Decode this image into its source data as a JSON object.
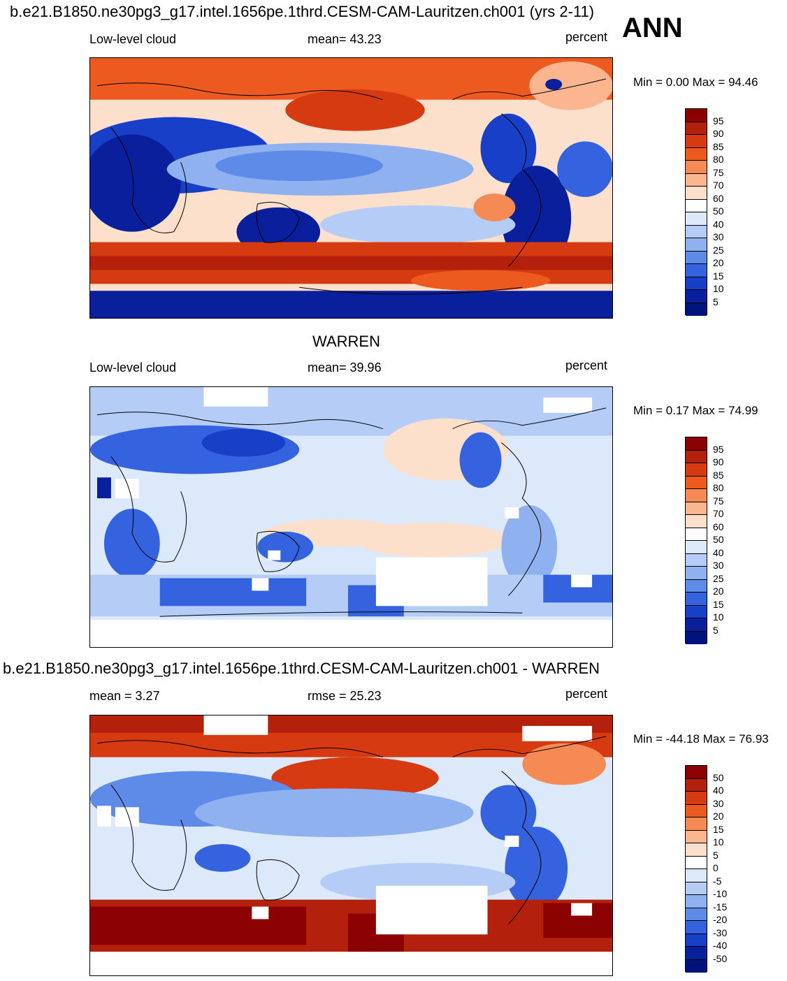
{
  "header": {
    "case_title": "b.e21.B1850.ne30pg3_g17.intel.1656pe.1thrd.CESM-CAM-Lauritzen.ch001 (yrs 2-11)",
    "season": "ANN"
  },
  "panels": [
    {
      "id": "model",
      "heading": "",
      "left_label": "Low-level cloud",
      "center_label": "mean=  43.23",
      "right_label": "percent",
      "minmax": "Min =   0.00 Max =  94.46",
      "colorbar_levels": [
        "95",
        "90",
        "85",
        "80",
        "75",
        "70",
        "60",
        "50",
        "40",
        "30",
        "25",
        "20",
        "15",
        "10",
        "5"
      ],
      "colors": [
        "#8b0000",
        "#b3200c",
        "#d63a10",
        "#ec5a20",
        "#f68a55",
        "#fbb690",
        "#fde0cc",
        "#ffffff",
        "#dce9fb",
        "#b5cdf6",
        "#8fb1ef",
        "#5f8be8",
        "#3563df",
        "#173fc8",
        "#0a1f9b",
        "#00137a"
      ]
    },
    {
      "id": "obs",
      "heading": "WARREN",
      "left_label": "Low-level cloud",
      "center_label": "mean=  39.96",
      "right_label": "percent",
      "minmax": "Min =   0.17 Max =  74.99",
      "colorbar_levels": [
        "95",
        "90",
        "85",
        "80",
        "75",
        "70",
        "60",
        "50",
        "40",
        "30",
        "25",
        "20",
        "15",
        "10",
        "5"
      ],
      "colors": [
        "#8b0000",
        "#b3200c",
        "#d63a10",
        "#ec5a20",
        "#f68a55",
        "#fbb690",
        "#fde0cc",
        "#ffffff",
        "#dce9fb",
        "#b5cdf6",
        "#8fb1ef",
        "#5f8be8",
        "#3563df",
        "#173fc8",
        "#0a1f9b",
        "#00137a"
      ]
    },
    {
      "id": "diff",
      "heading": "b.e21.B1850.ne30pg3_g17.intel.1656pe.1thrd.CESM-CAM-Lauritzen.ch001 - WARREN",
      "left_label": "mean =   3.27",
      "center_label": "rmse =  25.23",
      "right_label": "percent",
      "minmax": "Min = -44.18 Max =  76.93",
      "colorbar_levels": [
        "50",
        "40",
        "30",
        "20",
        "15",
        "10",
        "5",
        "0",
        "-5",
        "-10",
        "-15",
        "-20",
        "-30",
        "-40",
        "-50"
      ],
      "colors": [
        "#8b0000",
        "#b3200c",
        "#d63a10",
        "#ec5a20",
        "#f68a55",
        "#fbb690",
        "#fde0cc",
        "#ffffff",
        "#dce9fb",
        "#b5cdf6",
        "#8fb1ef",
        "#5f8be8",
        "#3563df",
        "#173fc8",
        "#0a1f9b",
        "#00137a"
      ]
    }
  ]
}
